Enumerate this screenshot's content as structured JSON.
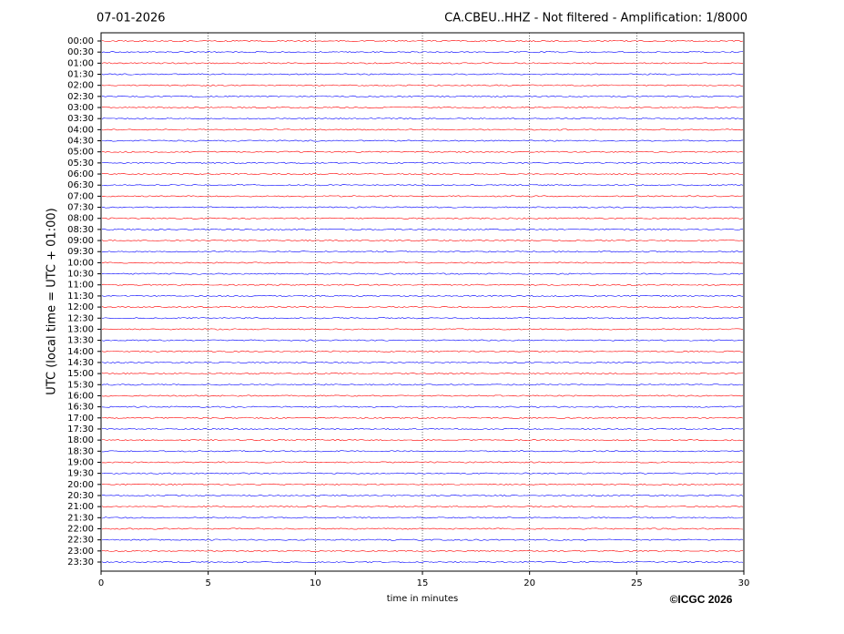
{
  "chart_data": {
    "type": "helicorder",
    "date": "07-01-2026",
    "title": "CA.CBEU..HHZ - Not filtered - Amplification: 1/8000",
    "ylabel": "UTC (local time = UTC + 01:00)",
    "xlabel": "time in minutes",
    "credit": "©ICGC 2026",
    "categories": [
      "00:00",
      "00:30",
      "01:00",
      "01:30",
      "02:00",
      "02:30",
      "03:00",
      "03:30",
      "04:00",
      "04:30",
      "05:00",
      "05:30",
      "06:00",
      "06:30",
      "07:00",
      "07:30",
      "08:00",
      "08:30",
      "09:00",
      "09:30",
      "10:00",
      "10:30",
      "11:00",
      "11:30",
      "12:00",
      "12:30",
      "13:00",
      "13:30",
      "14:00",
      "14:30",
      "15:00",
      "15:30",
      "16:00",
      "16:30",
      "17:00",
      "17:30",
      "18:00",
      "18:30",
      "19:00",
      "19:30",
      "20:00",
      "20:30",
      "21:00",
      "21:30",
      "22:00",
      "22:30",
      "23:00",
      "23:30"
    ],
    "colors": [
      "#ff0000",
      "#0000ff"
    ],
    "xlim": [
      0,
      30
    ],
    "xticks": [
      0,
      5,
      10,
      15,
      20,
      25,
      30
    ],
    "grid": true
  }
}
